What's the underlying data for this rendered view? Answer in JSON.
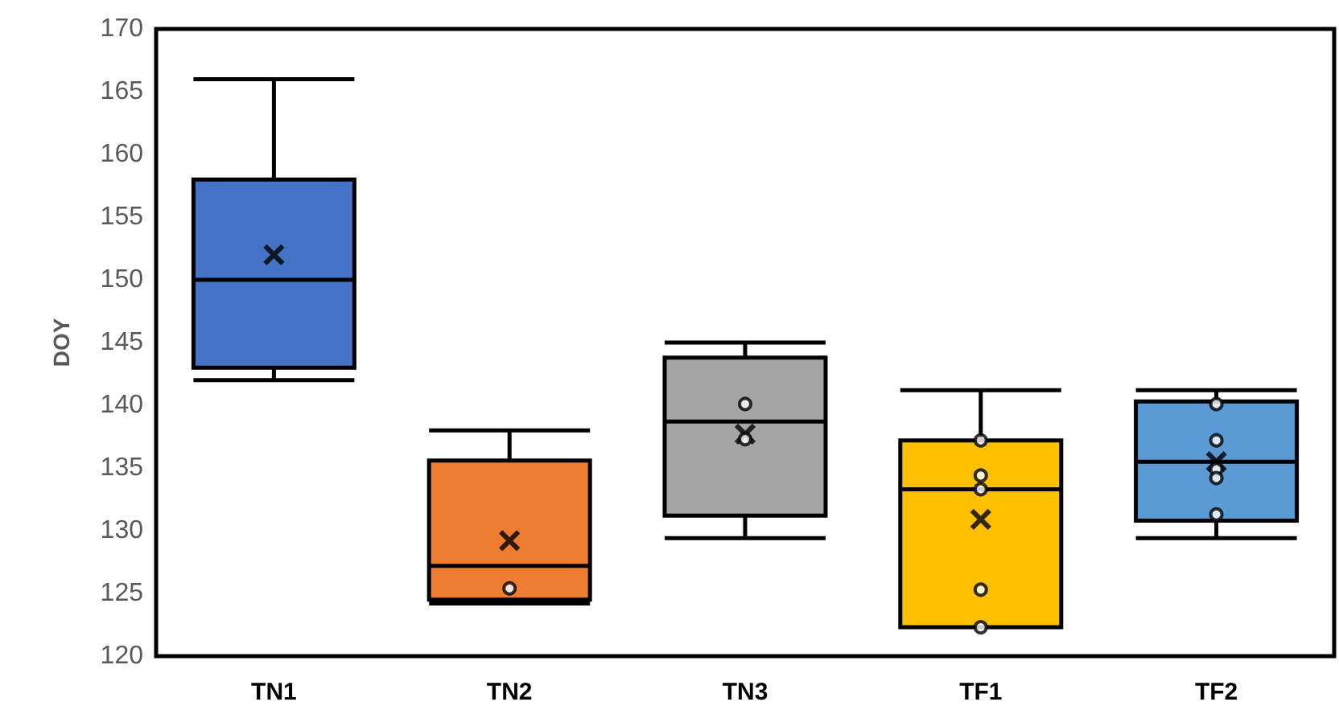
{
  "chart_data": {
    "type": "box",
    "ylabel": "DOY",
    "categories": [
      "TN1",
      "TN2",
      "TN3",
      "TF1",
      "TF2"
    ],
    "colors": [
      "#4472c4",
      "#ed7d31",
      "#a5a5a5",
      "#ffc000",
      "#5b9bd5"
    ],
    "boxes": [
      {
        "low": 142,
        "q1": 143,
        "median": 150,
        "q3": 158,
        "high": 166,
        "mean": 152
      },
      {
        "low": 124.2,
        "q1": 124.5,
        "median": 127.2,
        "q3": 135.6,
        "high": 138,
        "mean": 129.2
      },
      {
        "low": 129.4,
        "q1": 131.2,
        "median": 138.7,
        "q3": 143.8,
        "high": 145,
        "mean": 137.7
      },
      {
        "low": 122.3,
        "q1": 122.3,
        "median": 133.3,
        "q3": 137.2,
        "high": 141.2,
        "mean": 130.9
      },
      {
        "low": 129.4,
        "q1": 130.8,
        "median": 135.5,
        "q3": 140.3,
        "high": 141.2,
        "mean": 135.5
      }
    ],
    "series": [
      {
        "type": "scatter",
        "marker": "circle",
        "color": "#000000",
        "x": [
          "TN2",
          "TN3",
          "TN3",
          "TF1",
          "TF1",
          "TF1",
          "TF1",
          "TF1",
          "TF2",
          "TF2",
          "TF2",
          "TF2",
          "TF2"
        ],
        "values": [
          125.4,
          140.1,
          137.3,
          137.2,
          134.4,
          133.3,
          125.3,
          122.3,
          140.1,
          137.2,
          134.9,
          134.2,
          131.3
        ]
      }
    ],
    "ylim": [
      120,
      170
    ],
    "yticks": [
      120,
      125,
      130,
      135,
      140,
      145,
      150,
      155,
      160,
      165,
      170
    ],
    "grid": false
  }
}
